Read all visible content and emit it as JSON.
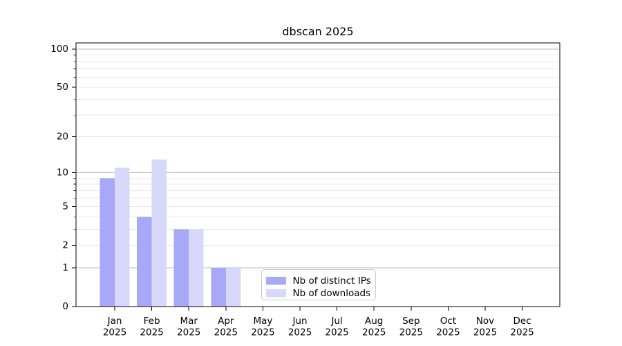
{
  "chart_data": {
    "type": "bar",
    "title": "dbscan 2025",
    "categories": [
      "Jan",
      "Feb",
      "Mar",
      "Apr",
      "May",
      "Jun",
      "Jul",
      "Aug",
      "Sep",
      "Oct",
      "Nov",
      "Dec"
    ],
    "category_year_line": "2025",
    "series": [
      {
        "name": "Nb of distinct IPs",
        "color": "#a8a8f8",
        "values": [
          9,
          4,
          3,
          1,
          0,
          0,
          0,
          0,
          0,
          0,
          0,
          0
        ]
      },
      {
        "name": "Nb of downloads",
        "color": "#d8d8fb",
        "values": [
          11,
          13,
          3,
          1,
          0,
          0,
          0,
          0,
          0,
          0,
          0,
          0
        ]
      }
    ],
    "yscale": "log1p",
    "ylim": [
      0,
      112
    ],
    "ytick_labels": [
      "0",
      "1",
      "2",
      "5",
      "10",
      "20",
      "50",
      "100"
    ],
    "yticks_labeled_values": [
      0,
      1,
      2,
      5,
      10,
      20,
      50,
      100
    ],
    "major_gridline_values": [
      1,
      10,
      100
    ],
    "minor_gridline_values": [
      2,
      3,
      4,
      5,
      6,
      7,
      8,
      9,
      20,
      30,
      40,
      50,
      60,
      70,
      80,
      90
    ],
    "grid": true,
    "legend": {
      "position": "lower-center",
      "entries": [
        "Nb of distinct IPs",
        "Nb of downloads"
      ]
    },
    "colors": {
      "bar_distinct_ips": "#a8a8f8",
      "bar_downloads": "#d8d8fb",
      "major_grid": "#bababa",
      "minor_grid": "#e9e9e9",
      "spine": "#000000",
      "text": "#000000",
      "legend_border": "#cccccc",
      "legend_background": "#ffffff"
    }
  }
}
